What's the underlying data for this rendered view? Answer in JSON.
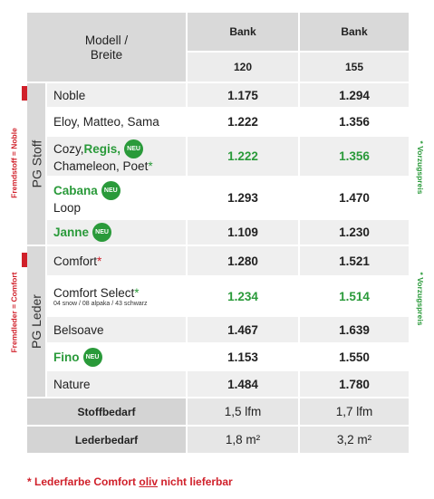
{
  "header": {
    "model": [
      "Modell /",
      "Breite"
    ],
    "columns": [
      {
        "label": "Bank",
        "width": "120"
      },
      {
        "label": "Bank",
        "width": "155"
      }
    ]
  },
  "groups": [
    {
      "label": "PG Stoff",
      "side_note": "Fremdstoff = Noble",
      "right_note": "* Vorzugspreis",
      "rows": [
        {
          "name": [
            [
              {
                "text": "Noble",
                "style": "normal"
              }
            ]
          ],
          "prices": [
            "1.175",
            "1.294"
          ]
        },
        {
          "name": [
            [
              {
                "text": "Eloy, Matteo, Sama",
                "style": "normal"
              }
            ]
          ],
          "prices": [
            "1.222",
            "1.356"
          ]
        },
        {
          "name": [
            [
              {
                "text": "Cozy, ",
                "style": "normal"
              },
              {
                "text": "Regis,",
                "style": "new"
              },
              {
                "text": "NEU",
                "style": "badge"
              }
            ],
            [
              {
                "text": "Chameleon, Poet",
                "style": "normal"
              },
              {
                "text": "*",
                "style": "star-green"
              }
            ]
          ],
          "prices": [
            "1.222",
            "1.356"
          ],
          "highlight": true
        },
        {
          "name": [
            [
              {
                "text": "Cabana",
                "style": "new"
              },
              {
                "text": "NEU",
                "style": "badge"
              }
            ],
            [
              {
                "text": "Loop",
                "style": "normal"
              }
            ]
          ],
          "prices": [
            "1.293",
            "1.470"
          ]
        },
        {
          "name": [
            [
              {
                "text": "Janne",
                "style": "new"
              },
              {
                "text": "NEU",
                "style": "badge"
              }
            ]
          ],
          "prices": [
            "1.109",
            "1.230"
          ]
        }
      ]
    },
    {
      "label": "PG Leder",
      "side_note": "Fremdleder = Comfort",
      "right_note": "* Vorzugspreis",
      "rows": [
        {
          "name": [
            [
              {
                "text": "Comfort",
                "style": "normal"
              },
              {
                "text": "*",
                "style": "star-red"
              }
            ]
          ],
          "prices": [
            "1.280",
            "1.521"
          ]
        },
        {
          "name": [
            [
              {
                "text": "Comfort Select",
                "style": "normal"
              },
              {
                "text": "*",
                "style": "star-green"
              }
            ],
            [
              {
                "text": "04 snow / 08 alpaka / 43 schwarz",
                "style": "small"
              }
            ]
          ],
          "prices": [
            "1.234",
            "1.514"
          ],
          "highlight": true
        },
        {
          "name": [
            [
              {
                "text": "Belsoave",
                "style": "normal"
              }
            ]
          ],
          "prices": [
            "1.467",
            "1.639"
          ]
        },
        {
          "name": [
            [
              {
                "text": "Fino",
                "style": "new"
              },
              {
                "text": "NEU",
                "style": "badge"
              }
            ]
          ],
          "prices": [
            "1.153",
            "1.550"
          ]
        },
        {
          "name": [
            [
              {
                "text": "Nature",
                "style": "normal"
              }
            ]
          ],
          "prices": [
            "1.484",
            "1.780"
          ]
        }
      ]
    }
  ],
  "requirements": [
    {
      "label": "Stoffbedarf",
      "values": [
        "1,5 lfm",
        "1,7 lfm"
      ]
    },
    {
      "label": "Lederbedarf",
      "values": [
        "1,8 m²",
        "3,2 m²"
      ]
    }
  ],
  "footnote": {
    "before": "* Lederfarbe Comfort ",
    "underlined": "oliv",
    "after": " nicht lieferbar"
  }
}
